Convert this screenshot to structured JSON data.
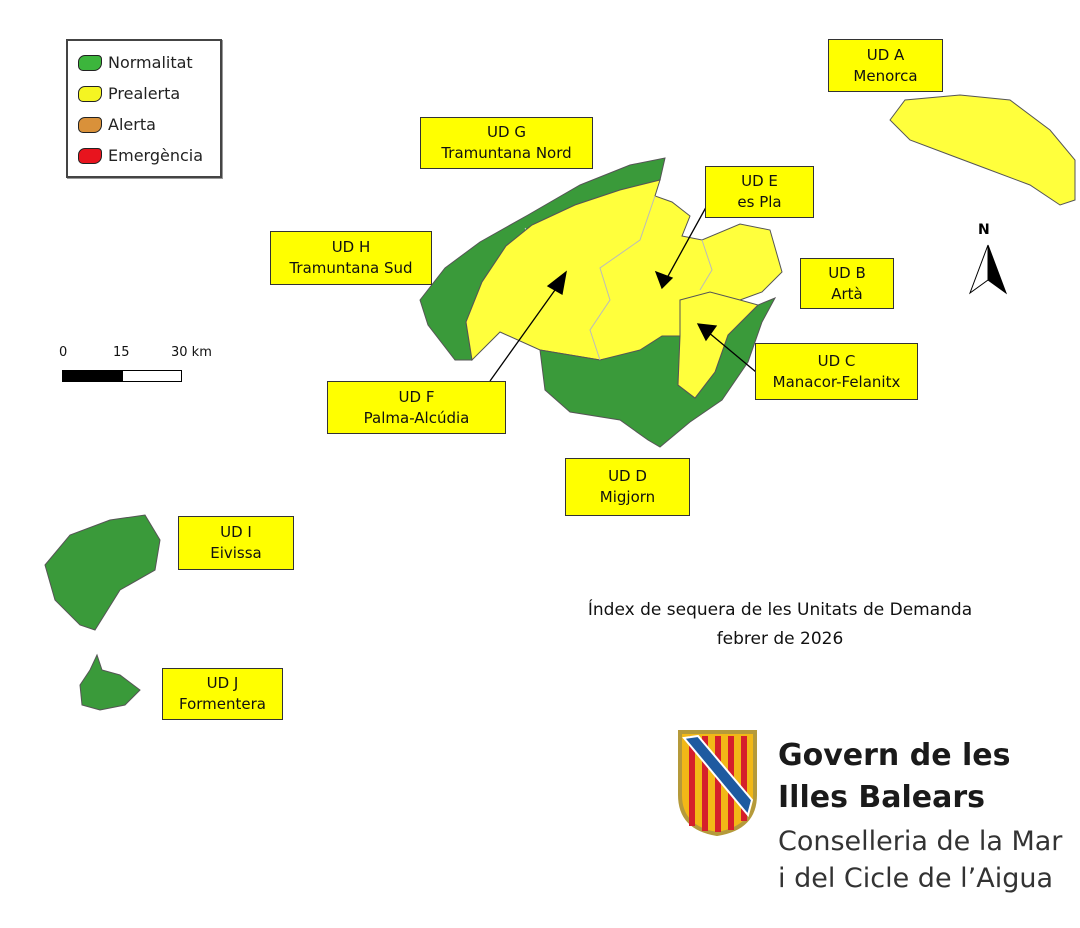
{
  "legend": {
    "items": [
      {
        "label": "Normalitat",
        "color": "#3cb53c"
      },
      {
        "label": "Prealerta",
        "color": "#f5f522"
      },
      {
        "label": "Alerta",
        "color": "#d9913a"
      },
      {
        "label": "Emergència",
        "color": "#e8141e"
      }
    ]
  },
  "units": [
    {
      "code": "UD A",
      "name": "Menorca",
      "status": "Prealerta"
    },
    {
      "code": "UD B",
      "name": "Artà",
      "status": "Prealerta"
    },
    {
      "code": "UD C",
      "name": "Manacor-Felanitx",
      "status": "Prealerta"
    },
    {
      "code": "UD D",
      "name": "Migjorn",
      "status": "Normalitat"
    },
    {
      "code": "UD E",
      "name": "es Pla",
      "status": "Prealerta"
    },
    {
      "code": "UD F",
      "name": "Palma-Alcúdia",
      "status": "Prealerta"
    },
    {
      "code": "UD G",
      "name": "Tramuntana Nord",
      "status": "Normalitat"
    },
    {
      "code": "UD H",
      "name": "Tramuntana Sud",
      "status": "Normalitat"
    },
    {
      "code": "UD I",
      "name": "Eivissa",
      "status": "Normalitat"
    },
    {
      "code": "UD J",
      "name": "Formentera",
      "status": "Normalitat"
    }
  ],
  "colors": {
    "normalitat": "#3a9a3a",
    "prealerta": "#ffff3c",
    "label_bg": "#ffff00"
  },
  "scale": {
    "ticks": [
      "0",
      "15",
      "30 km"
    ]
  },
  "north": "N",
  "caption": {
    "line1": "Índex de sequera de les Unitats de Demanda",
    "line2": "febrer de 2026"
  },
  "logo": {
    "line1": "Govern de les",
    "line2": "Illes Balears",
    "line3": "Conselleria de la Mar",
    "line4": "i del Cicle de l’Aigua"
  }
}
